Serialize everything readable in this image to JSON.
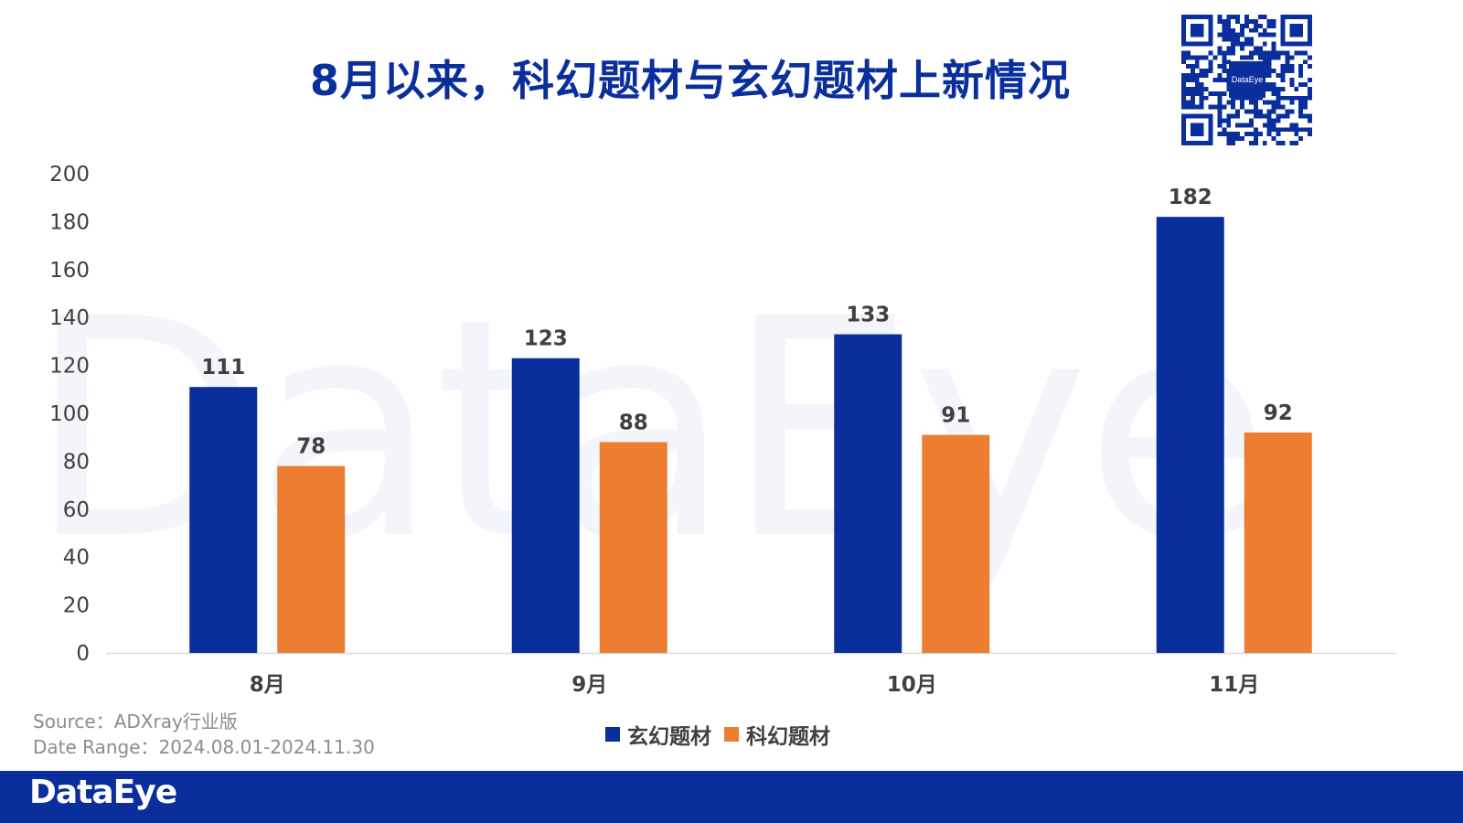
{
  "title": "8月以来，科幻题材与玄幻题材上新情况",
  "brand": "DataEye",
  "qr_label": "DataEye",
  "source_lines": [
    "Source：ADXray行业版",
    "Date Range：2024.08.01-2024.11.30"
  ],
  "colors": {
    "primary": "#0a2f9c",
    "orange": "#ed7d31",
    "axis_text": "#404040"
  },
  "chart_data": {
    "type": "bar",
    "categories": [
      "8月",
      "9月",
      "10月",
      "11月"
    ],
    "series": [
      {
        "name": "玄幻题材",
        "values": [
          111,
          123,
          133,
          182
        ],
        "color": "#0a2f9c"
      },
      {
        "name": "科幻题材",
        "values": [
          78,
          88,
          91,
          92
        ],
        "color": "#ed7d31"
      }
    ],
    "yticks": [
      0,
      20,
      40,
      60,
      80,
      100,
      120,
      140,
      160,
      180,
      200
    ],
    "ylim": [
      0,
      200
    ],
    "legend": "bottom",
    "grid": false,
    "data_labels": true
  }
}
